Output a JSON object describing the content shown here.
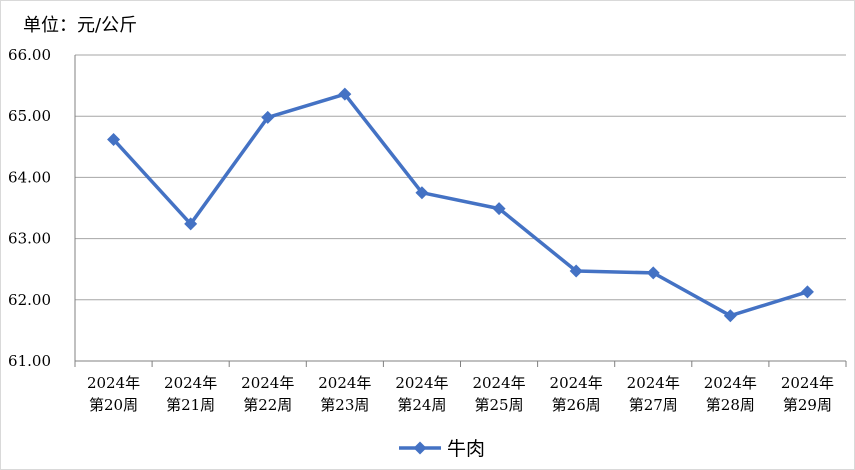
{
  "chart_data": {
    "type": "line",
    "unit_label": "单位：元/公斤",
    "categories": [
      "2024年\n第20周",
      "2024年\n第21周",
      "2024年\n第22周",
      "2024年\n第23周",
      "2024年\n第24周",
      "2024年\n第25周",
      "2024年\n第26周",
      "2024年\n第27周",
      "2024年\n第28周",
      "2024年\n第29周"
    ],
    "series": [
      {
        "name": "牛肉",
        "values": [
          64.62,
          63.24,
          64.98,
          65.36,
          63.75,
          63.49,
          62.47,
          62.44,
          61.74,
          62.13
        ]
      }
    ],
    "ylim": [
      61.0,
      66.0
    ],
    "yticks": [
      "61.00",
      "62.00",
      "63.00",
      "64.00",
      "65.00",
      "66.00"
    ],
    "grid": true,
    "legend_position": "bottom",
    "line_color": "#4472C4",
    "grid_color": "#a6a6a6"
  }
}
